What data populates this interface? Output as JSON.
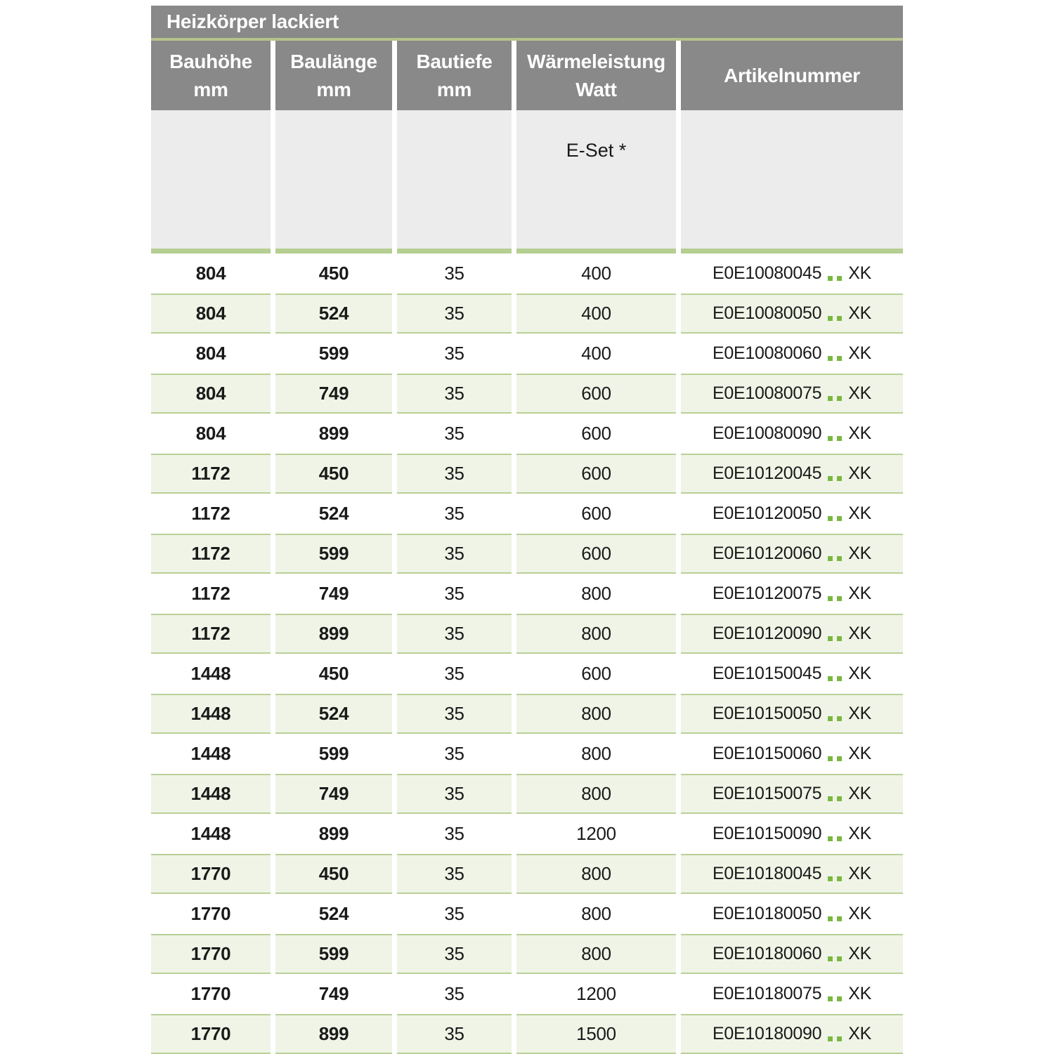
{
  "title": "Heizkörper lackiert",
  "columns": [
    {
      "line1": "Bauhöhe",
      "line2": "mm"
    },
    {
      "line1": "Baulänge",
      "line2": "mm"
    },
    {
      "line1": "Bautiefe",
      "line2": "mm"
    },
    {
      "line1": "Wärmeleistung",
      "line2": "Watt"
    },
    {
      "line1": "Artikelnummer",
      "line2": ""
    }
  ],
  "subheader": {
    "eset_label": "E-Set *"
  },
  "colors": {
    "header_gray": "#898989",
    "subheader_gray": "#ececec",
    "row_green": "#f0f4e6",
    "line_green": "#b5ce91",
    "dot_green": "#79b742"
  },
  "rows": [
    {
      "bauhoehe": "804",
      "baulaenge": "450",
      "bautiefe": "35",
      "waermeleistung": "400",
      "artikel_prefix": "E0E10080045",
      "artikel_suffix": "XK"
    },
    {
      "bauhoehe": "804",
      "baulaenge": "524",
      "bautiefe": "35",
      "waermeleistung": "400",
      "artikel_prefix": "E0E10080050",
      "artikel_suffix": "XK"
    },
    {
      "bauhoehe": "804",
      "baulaenge": "599",
      "bautiefe": "35",
      "waermeleistung": "400",
      "artikel_prefix": "E0E10080060",
      "artikel_suffix": "XK"
    },
    {
      "bauhoehe": "804",
      "baulaenge": "749",
      "bautiefe": "35",
      "waermeleistung": "600",
      "artikel_prefix": "E0E10080075",
      "artikel_suffix": "XK"
    },
    {
      "bauhoehe": "804",
      "baulaenge": "899",
      "bautiefe": "35",
      "waermeleistung": "600",
      "artikel_prefix": "E0E10080090",
      "artikel_suffix": "XK"
    },
    {
      "bauhoehe": "1172",
      "baulaenge": "450",
      "bautiefe": "35",
      "waermeleistung": "600",
      "artikel_prefix": "E0E10120045",
      "artikel_suffix": "XK"
    },
    {
      "bauhoehe": "1172",
      "baulaenge": "524",
      "bautiefe": "35",
      "waermeleistung": "600",
      "artikel_prefix": "E0E10120050",
      "artikel_suffix": "XK"
    },
    {
      "bauhoehe": "1172",
      "baulaenge": "599",
      "bautiefe": "35",
      "waermeleistung": "600",
      "artikel_prefix": "E0E10120060",
      "artikel_suffix": "XK"
    },
    {
      "bauhoehe": "1172",
      "baulaenge": "749",
      "bautiefe": "35",
      "waermeleistung": "800",
      "artikel_prefix": "E0E10120075",
      "artikel_suffix": "XK"
    },
    {
      "bauhoehe": "1172",
      "baulaenge": "899",
      "bautiefe": "35",
      "waermeleistung": "800",
      "artikel_prefix": "E0E10120090",
      "artikel_suffix": "XK"
    },
    {
      "bauhoehe": "1448",
      "baulaenge": "450",
      "bautiefe": "35",
      "waermeleistung": "600",
      "artikel_prefix": "E0E10150045",
      "artikel_suffix": "XK"
    },
    {
      "bauhoehe": "1448",
      "baulaenge": "524",
      "bautiefe": "35",
      "waermeleistung": "800",
      "artikel_prefix": "E0E10150050",
      "artikel_suffix": "XK"
    },
    {
      "bauhoehe": "1448",
      "baulaenge": "599",
      "bautiefe": "35",
      "waermeleistung": "800",
      "artikel_prefix": "E0E10150060",
      "artikel_suffix": "XK"
    },
    {
      "bauhoehe": "1448",
      "baulaenge": "749",
      "bautiefe": "35",
      "waermeleistung": "800",
      "artikel_prefix": "E0E10150075",
      "artikel_suffix": "XK"
    },
    {
      "bauhoehe": "1448",
      "baulaenge": "899",
      "bautiefe": "35",
      "waermeleistung": "1200",
      "artikel_prefix": "E0E10150090",
      "artikel_suffix": "XK"
    },
    {
      "bauhoehe": "1770",
      "baulaenge": "450",
      "bautiefe": "35",
      "waermeleistung": "800",
      "artikel_prefix": "E0E10180045",
      "artikel_suffix": "XK"
    },
    {
      "bauhoehe": "1770",
      "baulaenge": "524",
      "bautiefe": "35",
      "waermeleistung": "800",
      "artikel_prefix": "E0E10180050",
      "artikel_suffix": "XK"
    },
    {
      "bauhoehe": "1770",
      "baulaenge": "599",
      "bautiefe": "35",
      "waermeleistung": "800",
      "artikel_prefix": "E0E10180060",
      "artikel_suffix": "XK"
    },
    {
      "bauhoehe": "1770",
      "baulaenge": "749",
      "bautiefe": "35",
      "waermeleistung": "1200",
      "artikel_prefix": "E0E10180075",
      "artikel_suffix": "XK"
    },
    {
      "bauhoehe": "1770",
      "baulaenge": "899",
      "bautiefe": "35",
      "waermeleistung": "1500",
      "artikel_prefix": "E0E10180090",
      "artikel_suffix": "XK"
    }
  ]
}
